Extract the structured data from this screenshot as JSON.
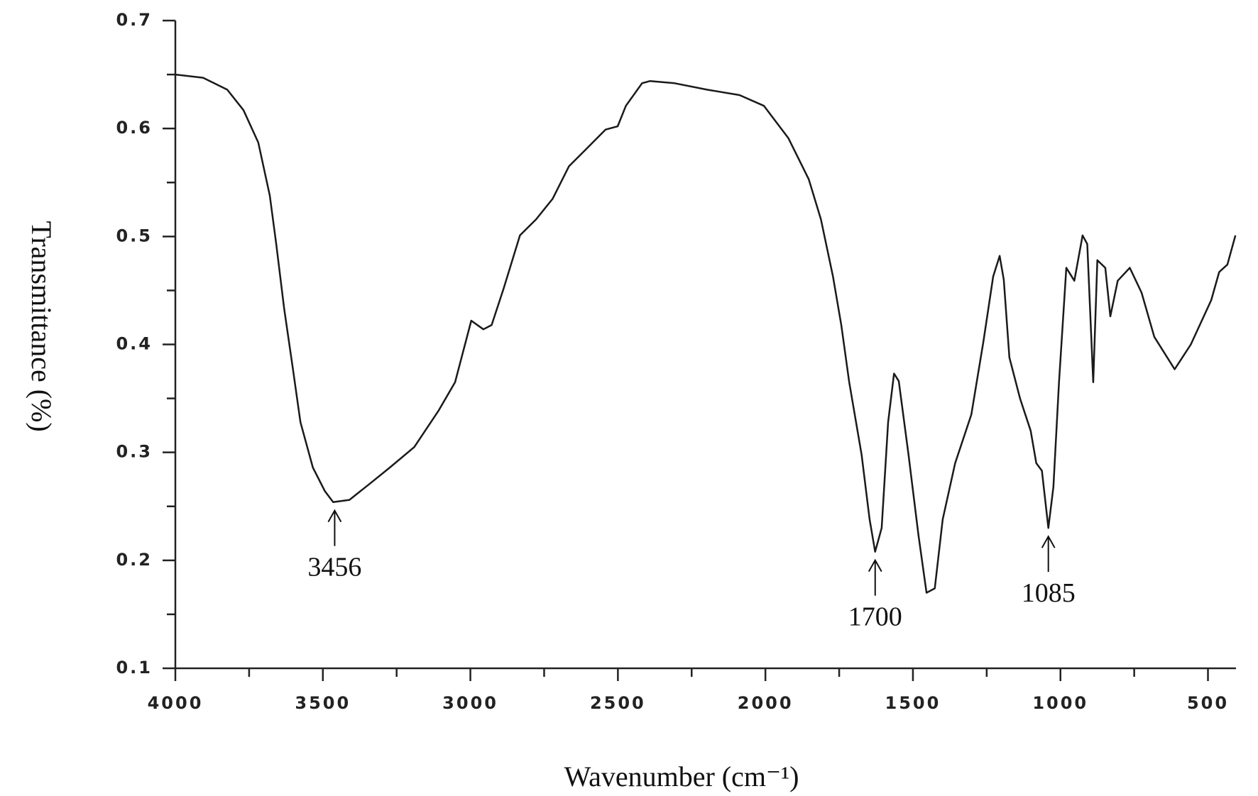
{
  "chart_data": {
    "type": "line",
    "x_label": "Wavenumber (cm⁻¹)",
    "y_label": "Transmittance  (%)",
    "color": "#1a1a1a",
    "xlim": [
      4000,
      405
    ],
    "ylim": [
      0.1,
      0.7
    ],
    "xticks": [
      4000,
      3500,
      3000,
      2500,
      2000,
      1500,
      1000,
      500
    ],
    "xminorticks": [
      3750,
      3250,
      2750,
      2250,
      1750,
      1250,
      750
    ],
    "yticks": [
      0.1,
      0.2,
      0.3,
      0.4,
      0.5,
      0.6,
      0.7
    ],
    "yminorticks": [
      0.15,
      0.25,
      0.35,
      0.45,
      0.55,
      0.65
    ],
    "x": [
      4000,
      3906,
      3824,
      3769,
      3719,
      3680,
      3658,
      3631,
      3603,
      3576,
      3534,
      3493,
      3465,
      3410,
      3341,
      3273,
      3190,
      3107,
      3052,
      2997,
      2956,
      2928,
      2887,
      2832,
      2777,
      2721,
      2666,
      2611,
      2542,
      2501,
      2473,
      2418,
      2391,
      2308,
      2198,
      2088,
      2005,
      1922,
      1853,
      1812,
      1771,
      1743,
      1716,
      1674,
      1647,
      1628,
      1606,
      1584,
      1564,
      1548,
      1515,
      1481,
      1454,
      1426,
      1399,
      1357,
      1302,
      1261,
      1228,
      1206,
      1192,
      1173,
      1137,
      1101,
      1082,
      1063,
      1041,
      1024,
      1005,
      980,
      953,
      925,
      909,
      889,
      875,
      848,
      831,
      806,
      765,
      725,
      682,
      613,
      558,
      489,
      462,
      434,
      407
    ],
    "values": [
      0.65,
      0.647,
      0.636,
      0.617,
      0.587,
      0.538,
      0.493,
      0.433,
      0.38,
      0.328,
      0.286,
      0.264,
      0.254,
      0.256,
      0.271,
      0.286,
      0.305,
      0.339,
      0.365,
      0.422,
      0.414,
      0.418,
      0.452,
      0.501,
      0.516,
      0.535,
      0.565,
      0.58,
      0.599,
      0.602,
      0.621,
      0.642,
      0.644,
      0.642,
      0.636,
      0.631,
      0.621,
      0.591,
      0.553,
      0.516,
      0.463,
      0.418,
      0.365,
      0.298,
      0.238,
      0.208,
      0.23,
      0.328,
      0.373,
      0.366,
      0.298,
      0.223,
      0.17,
      0.174,
      0.238,
      0.29,
      0.335,
      0.403,
      0.463,
      0.482,
      0.46,
      0.388,
      0.35,
      0.32,
      0.29,
      0.283,
      0.23,
      0.268,
      0.365,
      0.471,
      0.459,
      0.501,
      0.493,
      0.365,
      0.478,
      0.471,
      0.426,
      0.459,
      0.471,
      0.448,
      0.407,
      0.377,
      0.4,
      0.441,
      0.467,
      0.474,
      0.501
    ],
    "annotations": [
      {
        "text": "3456",
        "x": 3460,
        "y": 0.254
      },
      {
        "text": "1700",
        "x": 1628,
        "y": 0.208
      },
      {
        "text": "1085",
        "x": 1041,
        "y": 0.23
      }
    ]
  }
}
